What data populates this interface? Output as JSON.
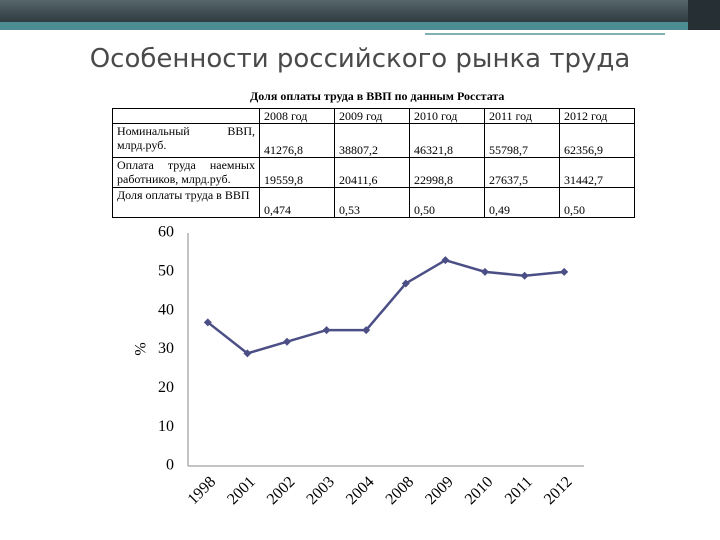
{
  "title": "Особенности российского рынка труда",
  "table": {
    "title": "Доля оплаты труда в ВВП по данным Росстата",
    "header": [
      "2008 год",
      "2009 год",
      "2010 год",
      "2011 год",
      "2012 год"
    ],
    "rows": [
      [
        "Номинальный ВВП, млрд.руб.",
        "41276,8",
        "38807,2",
        "46321,8",
        "55798,7",
        "62356,9"
      ],
      [
        "Оплата труда наемных работников, млрд.руб.",
        "19559,8",
        "20411,6",
        "22998,8",
        "27637,5",
        "31442,7"
      ],
      [
        "Доля оплаты труда в ВВП",
        "0,474",
        "0,53",
        "0,50",
        "0,49",
        "0,50"
      ]
    ]
  },
  "chart_data": {
    "type": "line",
    "y_label": "%",
    "categories": [
      "1998",
      "2001",
      "2002",
      "2003",
      "2004",
      "2008",
      "2009",
      "2010",
      "2011",
      "2012"
    ],
    "series": [
      {
        "name": "Доля оплаты труда в ВВП",
        "color": "#4b4f86",
        "values": [
          37,
          29,
          32,
          35,
          35,
          47,
          53,
          50,
          49,
          50
        ]
      }
    ],
    "ylim": [
      0,
      60
    ],
    "yticks": [
      0,
      10,
      20,
      30,
      40,
      50,
      60
    ],
    "grid": false,
    "legend": false
  }
}
